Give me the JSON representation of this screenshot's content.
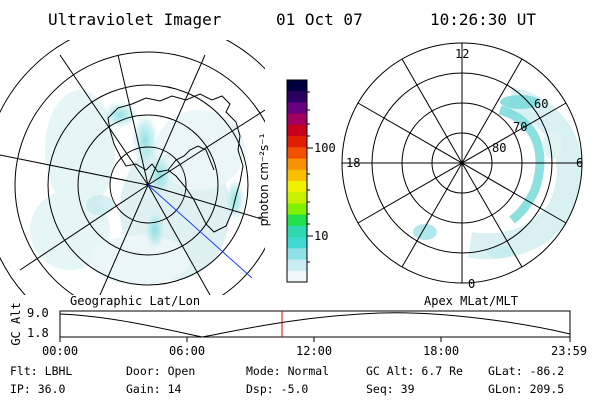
{
  "header": {
    "instrument": "Ultraviolet Imager",
    "date": "01 Oct 07",
    "time": "10:26:30 UT"
  },
  "colorbar": {
    "unit_label": "photon cm⁻²s⁻¹",
    "ticks": [
      "100",
      "10"
    ],
    "colors": [
      "#000040",
      "#2a0060",
      "#6a0080",
      "#a00060",
      "#c8001e",
      "#e02000",
      "#f05000",
      "#f89000",
      "#f8c000",
      "#f0f000",
      "#c8f000",
      "#80f000",
      "#20e050",
      "#30d8b0",
      "#40d8d0",
      "#90e0e8",
      "#c8eef4",
      "#f0f8fc"
    ]
  },
  "geo_map": {
    "label": "Geographic Lat/Lon"
  },
  "polar_plot": {
    "label": "Apex MLat/MLT",
    "mlt_labels": {
      "top": "12",
      "left": "18",
      "right": "6",
      "bottom": "0"
    },
    "lat_labels": [
      "60",
      "70",
      "80"
    ]
  },
  "altitude_plot": {
    "ylabel": "GC Alt",
    "yticks": [
      "9.0",
      "1.8"
    ],
    "xticks": [
      "00:00",
      "06:00",
      "12:00",
      "18:00",
      "23:59"
    ]
  },
  "info": {
    "row1": [
      {
        "key": "Flt:",
        "value": "LBHL"
      },
      {
        "key": "Door:",
        "value": "Open"
      },
      {
        "key": "Mode:",
        "value": "Normal"
      },
      {
        "key": "GC Alt:",
        "value": "6.7 Re"
      },
      {
        "key": "GLat:",
        "value": "-86.2"
      }
    ],
    "row2": [
      {
        "key": "IP:",
        "value": "36.0"
      },
      {
        "key": "Gain:",
        "value": "14"
      },
      {
        "key": "Dsp:",
        "value": "-5.0"
      },
      {
        "key": "Seq:",
        "value": "39"
      },
      {
        "key": "GLon:",
        "value": "209.5"
      }
    ]
  }
}
